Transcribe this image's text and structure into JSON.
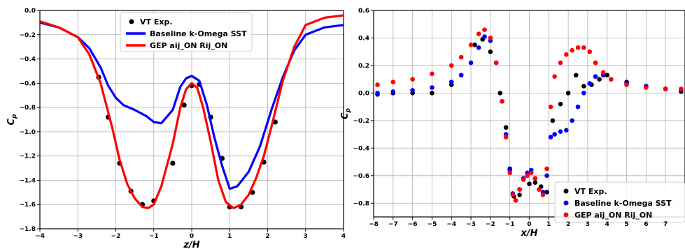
{
  "chart_data": [
    {
      "type": "line",
      "xlabel": "z/H",
      "ylabel": "C_p",
      "xlim": [
        -4,
        4
      ],
      "ylim": [
        -1.8,
        0.0
      ],
      "x_ticks": [
        "−4",
        "−3",
        "−2",
        "−1",
        "0",
        "1",
        "2",
        "3",
        "4"
      ],
      "y_ticks": [
        "0.0",
        "−0.2",
        "−0.4",
        "−0.6",
        "−0.8",
        "−1.0",
        "−1.2",
        "−1.4",
        "−1.6",
        "−1.8"
      ],
      "grid": true,
      "legend_position": "top-center",
      "series": [
        {
          "name": "VT Exp.",
          "style": "markers",
          "color": "#000000",
          "x": [
            -2.45,
            -2.2,
            -1.9,
            -1.6,
            -1.3,
            -1.0,
            -0.5,
            -0.2,
            0.0,
            0.2,
            0.5,
            0.8,
            1.0,
            1.3,
            1.6,
            1.9,
            2.2
          ],
          "y": [
            -0.55,
            -0.88,
            -1.26,
            -1.49,
            -1.6,
            -1.57,
            -1.26,
            -0.78,
            -0.62,
            -0.61,
            -0.88,
            -1.22,
            -1.62,
            -1.62,
            -1.5,
            -1.25,
            -0.92
          ]
        },
        {
          "name": "Baseline k-Omega SST",
          "style": "line",
          "color": "#0000ff",
          "x": [
            -4.0,
            -3.5,
            -3.0,
            -2.7,
            -2.4,
            -2.2,
            -2.0,
            -1.8,
            -1.5,
            -1.2,
            -1.0,
            -0.8,
            -0.5,
            -0.3,
            -0.15,
            0.0,
            0.2,
            0.4,
            0.6,
            0.8,
            1.0,
            1.2,
            1.5,
            1.8,
            2.1,
            2.4,
            2.7,
            3.0,
            3.5,
            4.0
          ],
          "y": [
            -0.1,
            -0.14,
            -0.22,
            -0.31,
            -0.47,
            -0.62,
            -0.72,
            -0.78,
            -0.82,
            -0.87,
            -0.92,
            -0.93,
            -0.82,
            -0.63,
            -0.56,
            -0.54,
            -0.58,
            -0.78,
            -1.05,
            -1.28,
            -1.47,
            -1.45,
            -1.33,
            -1.12,
            -0.82,
            -0.55,
            -0.33,
            -0.2,
            -0.14,
            -0.12
          ]
        },
        {
          "name": "GEP aij_ON Rij_ON",
          "style": "line",
          "color": "#ff0000",
          "x": [
            -4.0,
            -3.5,
            -3.0,
            -2.7,
            -2.4,
            -2.1,
            -1.9,
            -1.7,
            -1.5,
            -1.3,
            -1.15,
            -1.0,
            -0.8,
            -0.5,
            -0.3,
            -0.15,
            0.0,
            0.15,
            0.3,
            0.5,
            0.7,
            0.9,
            1.1,
            1.3,
            1.5,
            1.7,
            1.9,
            2.1,
            2.4,
            2.7,
            3.0,
            3.5,
            4.0
          ],
          "y": [
            -0.09,
            -0.14,
            -0.22,
            -0.36,
            -0.6,
            -0.96,
            -1.23,
            -1.43,
            -1.55,
            -1.62,
            -1.63,
            -1.6,
            -1.45,
            -1.1,
            -0.8,
            -0.65,
            -0.6,
            -0.64,
            -0.8,
            -1.08,
            -1.4,
            -1.58,
            -1.63,
            -1.6,
            -1.52,
            -1.38,
            -1.2,
            -0.96,
            -0.58,
            -0.3,
            -0.12,
            -0.06,
            -0.04
          ]
        }
      ]
    },
    {
      "type": "scatter",
      "xlabel": "x/H",
      "ylabel": "C_p",
      "xlim": [
        -8,
        8
      ],
      "ylim": [
        -0.9,
        0.6
      ],
      "x_ticks": [
        "−8",
        "−7",
        "−6",
        "−5",
        "−4",
        "−3",
        "−2",
        "−1",
        "0",
        "1",
        "2",
        "3",
        "4",
        "5",
        "6",
        "7"
      ],
      "y_ticks": [
        "0.6",
        "0.4",
        "0.2",
        "0.0",
        "−0.2",
        "−0.4",
        "−0.6",
        "−0.8"
      ],
      "grid": true,
      "legend_position": "lower-right",
      "series": [
        {
          "name": "VT Exp.",
          "color": "#000000",
          "x": [
            -7.8,
            -7.0,
            -6.0,
            -5.0,
            -4.0,
            -3.5,
            -2.8,
            -2.4,
            -2.0,
            -1.5,
            -1.2,
            -1.0,
            -0.8,
            -0.5,
            0.0,
            0.3,
            0.6,
            0.9,
            1.2,
            1.6,
            2.0,
            2.4,
            2.8,
            3.2,
            3.6,
            4.0,
            5.0,
            6.0,
            7.0,
            7.8
          ],
          "y": [
            -0.01,
            0.0,
            0.0,
            0.0,
            0.06,
            0.13,
            0.35,
            0.39,
            0.3,
            0.0,
            -0.25,
            -0.55,
            -0.75,
            -0.74,
            -0.66,
            -0.65,
            -0.68,
            -0.72,
            -0.2,
            -0.08,
            0.0,
            0.13,
            0.05,
            0.06,
            0.1,
            0.13,
            0.08,
            0.05,
            0.03,
            0.01
          ]
        },
        {
          "name": "Baseline k-Omega SST",
          "color": "#0000ff",
          "x": [
            -7.8,
            -7.0,
            -6.0,
            -5.0,
            -4.0,
            -3.5,
            -3.0,
            -2.6,
            -2.3,
            -2.0,
            -1.7,
            -1.4,
            -1.2,
            -1.0,
            -0.85,
            -0.7,
            -0.5,
            -0.3,
            -0.1,
            0.1,
            0.3,
            0.5,
            0.7,
            0.9,
            1.1,
            1.3,
            1.6,
            1.9,
            2.2,
            2.5,
            2.8,
            3.1,
            3.4,
            3.8,
            4.2,
            5.0,
            6.0,
            7.0,
            7.8
          ],
          "y": [
            0.0,
            0.01,
            0.02,
            0.04,
            0.08,
            0.13,
            0.22,
            0.33,
            0.41,
            0.38,
            0.22,
            -0.06,
            -0.3,
            -0.56,
            -0.73,
            -0.78,
            -0.7,
            -0.62,
            -0.58,
            -0.56,
            -0.62,
            -0.7,
            -0.72,
            -0.6,
            -0.32,
            -0.3,
            -0.28,
            -0.27,
            -0.2,
            -0.1,
            0.0,
            0.07,
            0.12,
            0.13,
            0.1,
            0.07,
            0.05,
            0.03,
            0.02
          ]
        },
        {
          "name": "GEP aij_ON Rij_ON",
          "color": "#ff0000",
          "x": [
            -7.8,
            -7.0,
            -6.0,
            -5.0,
            -4.0,
            -3.5,
            -3.0,
            -2.6,
            -2.3,
            -2.0,
            -1.7,
            -1.4,
            -1.2,
            -1.0,
            -0.85,
            -0.7,
            -0.5,
            -0.3,
            -0.1,
            0.1,
            0.3,
            0.5,
            0.7,
            0.9,
            1.1,
            1.3,
            1.6,
            1.9,
            2.2,
            2.5,
            2.8,
            3.1,
            3.4,
            3.8,
            4.2,
            5.0,
            6.0,
            7.0,
            7.8
          ],
          "y": [
            0.06,
            0.08,
            0.1,
            0.14,
            0.2,
            0.26,
            0.35,
            0.43,
            0.46,
            0.4,
            0.22,
            -0.06,
            -0.32,
            -0.58,
            -0.74,
            -0.78,
            -0.7,
            -0.63,
            -0.6,
            -0.58,
            -0.62,
            -0.7,
            -0.74,
            -0.55,
            -0.1,
            0.12,
            0.22,
            0.28,
            0.31,
            0.33,
            0.33,
            0.3,
            0.22,
            0.15,
            0.1,
            0.06,
            0.04,
            0.03,
            0.03
          ]
        }
      ]
    }
  ]
}
